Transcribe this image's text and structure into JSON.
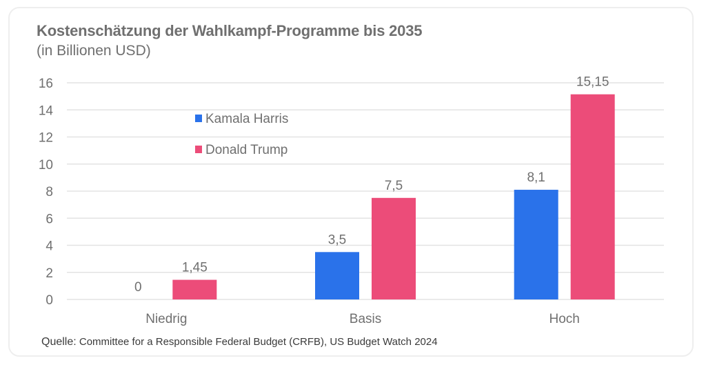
{
  "chart_data": {
    "type": "bar",
    "title": "Kostenschätzung der Wahlkampf-Programme bis 2035",
    "subtitle": "(in Billionen USD)",
    "xlabel": "",
    "ylabel": "",
    "categories": [
      "Niedrig",
      "Basis",
      "Hoch"
    ],
    "series": [
      {
        "name": "Kamala Harris",
        "color": "#2a72ea",
        "values": [
          0,
          3.5,
          8.1
        ],
        "labels": [
          "0",
          "3,5",
          "8,1"
        ]
      },
      {
        "name": "Donald Trump",
        "color": "#ec4c79",
        "values": [
          1.45,
          7.5,
          15.15
        ],
        "labels": [
          "1,45",
          "7,5",
          "15,15"
        ]
      }
    ],
    "ylim": [
      0,
      16
    ],
    "yticks": [
      0,
      2,
      4,
      6,
      8,
      10,
      12,
      14,
      16
    ],
    "grid": true,
    "legend": "top-left-inside",
    "source_label": "Quelle:",
    "source_text": "Committee for a Responsible Federal Budget (CRFB), US Budget Watch 2024"
  }
}
